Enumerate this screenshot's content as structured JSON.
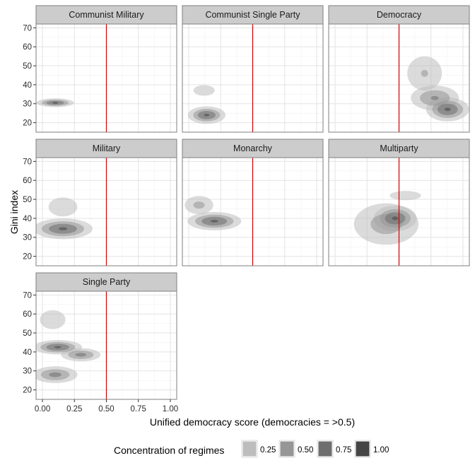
{
  "chart_data": {
    "type": "density2d-faceted",
    "xlabel": "Unified democracy score (democracies = >0.5)",
    "ylabel": "Gini index",
    "xlim": [
      -0.05,
      1.05
    ],
    "ylim": [
      15,
      72
    ],
    "x_ticks": [
      "0.00",
      "0.25",
      "0.50",
      "0.75",
      "1.00"
    ],
    "x_tick_values": [
      0,
      0.25,
      0.5,
      0.75,
      1
    ],
    "y_ticks": [
      "20",
      "30",
      "40",
      "50",
      "60",
      "70"
    ],
    "y_tick_values": [
      20,
      30,
      40,
      50,
      60,
      70
    ],
    "reference_line": {
      "x": 0.5,
      "color": "#cc0000"
    },
    "grid": true,
    "legend": {
      "title": "Concentration of regimes",
      "position": "bottom",
      "levels": [
        {
          "label": "0.25",
          "value": 0.25,
          "color": "#bdbdbd"
        },
        {
          "label": "0.50",
          "value": 0.5,
          "color": "#969696"
        },
        {
          "label": "0.75",
          "value": 0.75,
          "color": "#6e6e6e"
        },
        {
          "label": "1.00",
          "value": 1.0,
          "color": "#454545"
        }
      ]
    },
    "facets": [
      {
        "label": "Communist  Military",
        "clusters": [
          {
            "x": 0.1,
            "y": 30.5,
            "sx": 0.07,
            "sy": 1.1,
            "w": 1.0
          }
        ]
      },
      {
        "label": "Communist  Single Party",
        "clusters": [
          {
            "x": 0.14,
            "y": 24,
            "sx": 0.07,
            "sy": 2.2,
            "w": 1.0
          },
          {
            "x": 0.12,
            "y": 37,
            "sx": 0.06,
            "sy": 2.0,
            "w": 0.45
          }
        ]
      },
      {
        "label": "Democracy",
        "clusters": [
          {
            "x": 0.88,
            "y": 27,
            "sx": 0.08,
            "sy": 3.0,
            "w": 1.0
          },
          {
            "x": 0.78,
            "y": 33,
            "sx": 0.1,
            "sy": 3.5,
            "w": 0.75
          },
          {
            "x": 0.7,
            "y": 46,
            "sx": 0.09,
            "sy": 6.0,
            "w": 0.5
          }
        ]
      },
      {
        "label": "Military",
        "clusters": [
          {
            "x": 0.16,
            "y": 34.5,
            "sx": 0.11,
            "sy": 2.6,
            "w": 1.0
          },
          {
            "x": 0.16,
            "y": 46,
            "sx": 0.09,
            "sy": 4.0,
            "w": 0.4
          }
        ]
      },
      {
        "label": "Monarchy",
        "clusters": [
          {
            "x": 0.2,
            "y": 38.5,
            "sx": 0.1,
            "sy": 2.3,
            "w": 1.0
          },
          {
            "x": 0.08,
            "y": 47,
            "sx": 0.07,
            "sy": 3.0,
            "w": 0.55
          }
        ]
      },
      {
        "label": "Multiparty",
        "clusters": [
          {
            "x": 0.47,
            "y": 40,
            "sx": 0.08,
            "sy": 3.2,
            "w": 1.0
          },
          {
            "x": 0.4,
            "y": 37,
            "sx": 0.15,
            "sy": 6.5,
            "w": 0.6
          },
          {
            "x": 0.55,
            "y": 52,
            "sx": 0.15,
            "sy": 3.0,
            "w": 0.3
          }
        ]
      },
      {
        "label": "Single Party",
        "clusters": [
          {
            "x": 0.12,
            "y": 42.5,
            "sx": 0.09,
            "sy": 1.8,
            "w": 1.0
          },
          {
            "x": 0.3,
            "y": 38.5,
            "sx": 0.08,
            "sy": 1.8,
            "w": 0.8
          },
          {
            "x": 0.1,
            "y": 28,
            "sx": 0.09,
            "sy": 2.3,
            "w": 0.8
          },
          {
            "x": 0.08,
            "y": 57,
            "sx": 0.08,
            "sy": 4.0,
            "w": 0.4
          }
        ]
      }
    ]
  }
}
